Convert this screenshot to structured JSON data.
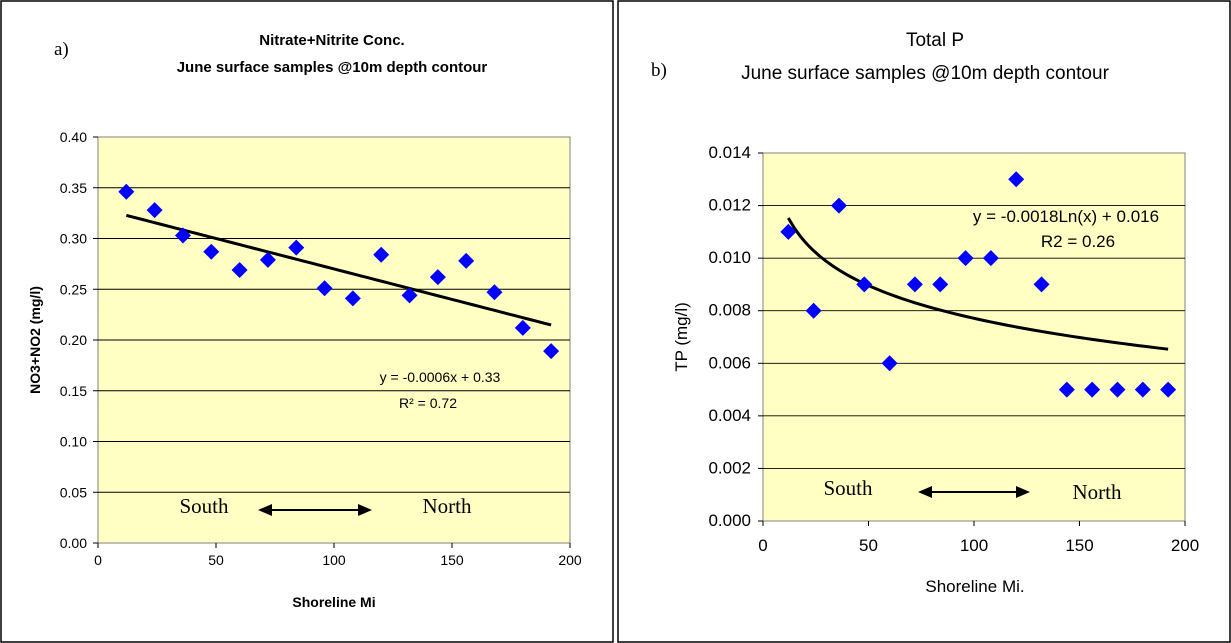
{
  "chart_data": [
    {
      "panel_label": "a)",
      "type": "scatter",
      "title": "Nitrate+Nitrite Conc.",
      "subtitle": "June surface samples @10m depth contour",
      "xlabel": "Shoreline Mi",
      "ylabel": "NO3+NO2 (mg/l)",
      "xlim": [
        0,
        200
      ],
      "ylim": [
        0.0,
        0.4
      ],
      "x_ticks": [
        "0",
        "50",
        "100",
        "150",
        "200"
      ],
      "y_ticks": [
        "0.00",
        "0.05",
        "0.10",
        "0.15",
        "0.20",
        "0.25",
        "0.30",
        "0.35",
        "0.40"
      ],
      "grid": "horizontal",
      "background": "#ffffc4",
      "marker_color": "#0000ff",
      "marker": "diamond",
      "points": [
        {
          "x": 12,
          "y": 0.346
        },
        {
          "x": 24,
          "y": 0.328
        },
        {
          "x": 36,
          "y": 0.303
        },
        {
          "x": 48,
          "y": 0.287
        },
        {
          "x": 60,
          "y": 0.269
        },
        {
          "x": 72,
          "y": 0.279
        },
        {
          "x": 84,
          "y": 0.291
        },
        {
          "x": 96,
          "y": 0.251
        },
        {
          "x": 108,
          "y": 0.241
        },
        {
          "x": 120,
          "y": 0.284
        },
        {
          "x": 132,
          "y": 0.244
        },
        {
          "x": 144,
          "y": 0.262
        },
        {
          "x": 156,
          "y": 0.278
        },
        {
          "x": 168,
          "y": 0.247
        },
        {
          "x": 180,
          "y": 0.212
        },
        {
          "x": 192,
          "y": 0.189
        }
      ],
      "trendline": {
        "type": "linear",
        "slope": -0.0006,
        "intercept": 0.33,
        "x_range": [
          12,
          192
        ]
      },
      "equation_text": "y = -0.0006x + 0.33",
      "r2_text": "R² = 0.72",
      "annotation_left": "South",
      "annotation_right": "North"
    },
    {
      "panel_label": "b)",
      "type": "scatter",
      "title": "Total P",
      "subtitle": "June surface samples @10m depth contour",
      "xlabel": "Shoreline Mi.",
      "ylabel": "TP  (mg/l)",
      "xlim": [
        0,
        200
      ],
      "ylim": [
        0.0,
        0.014
      ],
      "x_ticks": [
        "0",
        "50",
        "100",
        "150",
        "200"
      ],
      "y_ticks": [
        "0.000",
        "0.002",
        "0.004",
        "0.006",
        "0.008",
        "0.010",
        "0.012",
        "0.014"
      ],
      "grid": "horizontal",
      "background": "#ffffc4",
      "marker_color": "#0000ff",
      "marker": "diamond",
      "points": [
        {
          "x": 12,
          "y": 0.011
        },
        {
          "x": 24,
          "y": 0.008
        },
        {
          "x": 36,
          "y": 0.012
        },
        {
          "x": 48,
          "y": 0.009
        },
        {
          "x": 60,
          "y": 0.006
        },
        {
          "x": 72,
          "y": 0.009
        },
        {
          "x": 84,
          "y": 0.009
        },
        {
          "x": 96,
          "y": 0.01
        },
        {
          "x": 108,
          "y": 0.01
        },
        {
          "x": 120,
          "y": 0.013
        },
        {
          "x": 132,
          "y": 0.009
        },
        {
          "x": 144,
          "y": 0.005
        },
        {
          "x": 156,
          "y": 0.005
        },
        {
          "x": 168,
          "y": 0.005
        },
        {
          "x": 180,
          "y": 0.005
        },
        {
          "x": 192,
          "y": 0.005
        }
      ],
      "trendline": {
        "type": "logarithmic",
        "coef": -0.0018,
        "intercept": 0.016,
        "x_range": [
          12,
          192
        ]
      },
      "equation_text": "y = -0.0018Ln(x) + 0.016",
      "r2_text": "R2 = 0.26",
      "annotation_left": "South",
      "annotation_right": "North"
    }
  ]
}
